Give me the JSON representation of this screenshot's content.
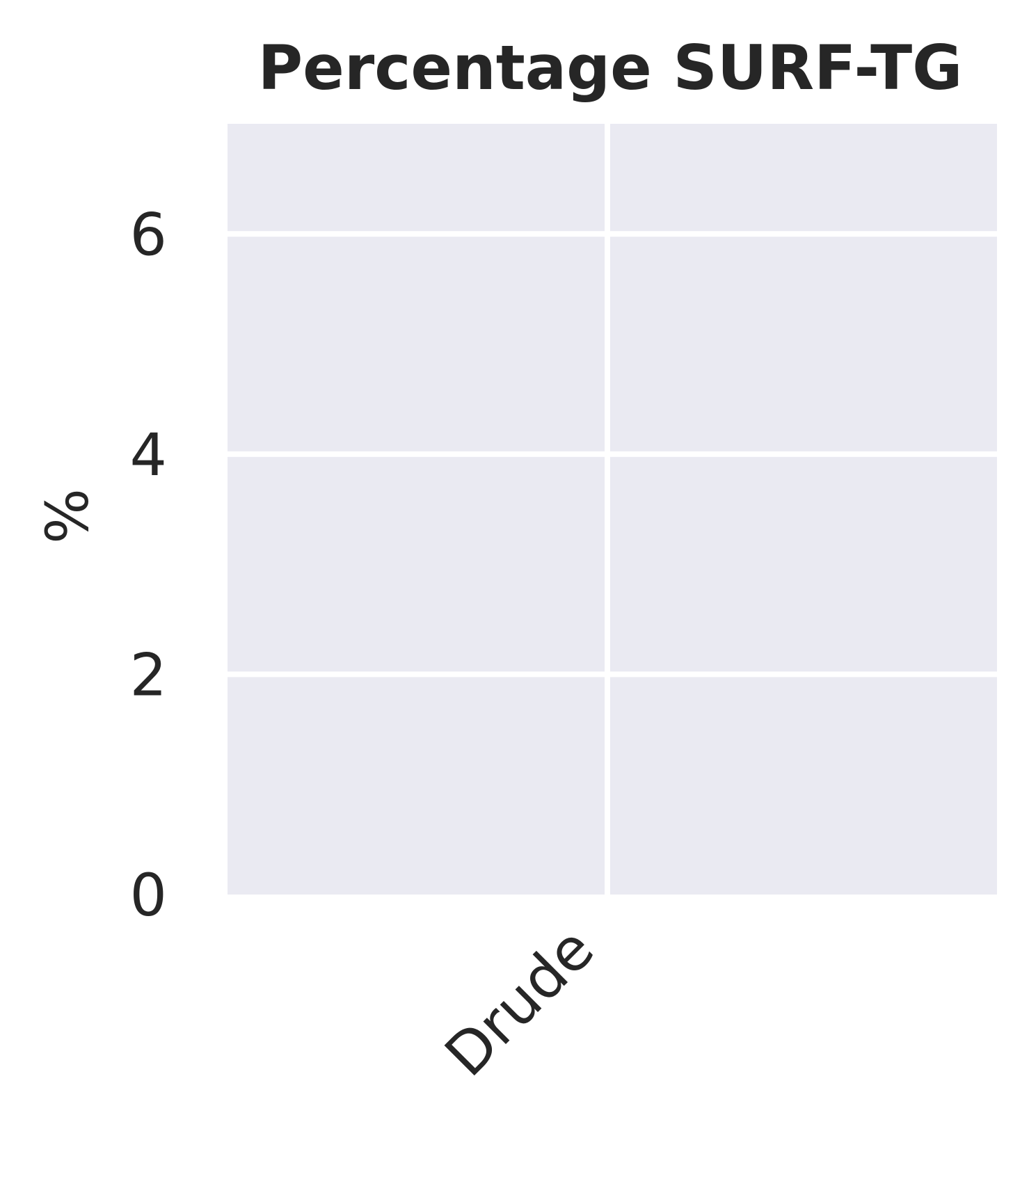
{
  "chart_data": {
    "type": "bar",
    "title": "Percentage SURF-TG",
    "xlabel": "",
    "ylabel": "%",
    "categories": [
      "Drude"
    ],
    "series": [
      {
        "values": [
          0
        ]
      }
    ],
    "ylim": [
      0,
      7.0
    ],
    "yticks": [
      0,
      2,
      4,
      6
    ],
    "grid": true,
    "legend": "none",
    "colors": {
      "background": "#eaeaf2",
      "grid": "#ffffff",
      "text": "#262626"
    }
  }
}
